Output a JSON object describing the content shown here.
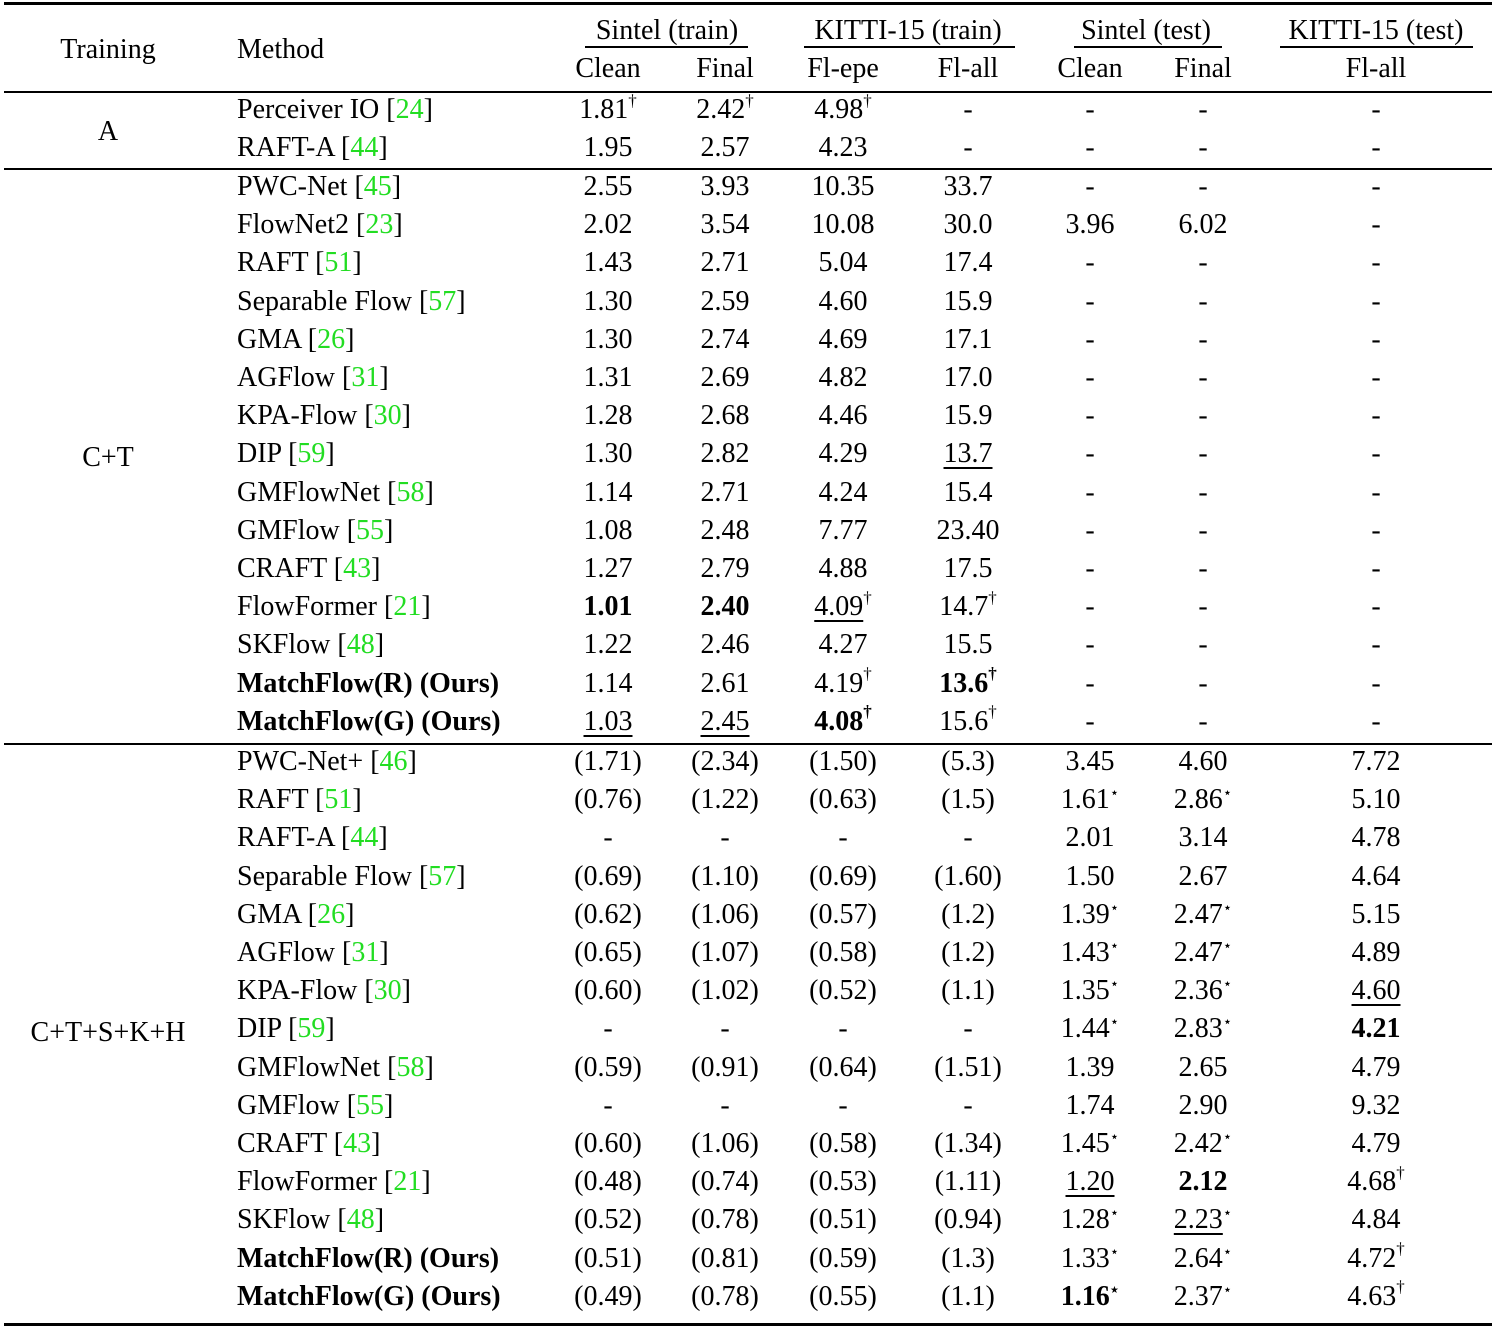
{
  "header": {
    "training": "Training",
    "method": "Method",
    "groups": [
      {
        "label": "Sintel (train)",
        "cols": [
          "Clean",
          "Final"
        ]
      },
      {
        "label": "KITTI-15 (train)",
        "cols": [
          "Fl-epe",
          "Fl-all"
        ]
      },
      {
        "label": "Sintel (test)",
        "cols": [
          "Clean",
          "Final"
        ]
      },
      {
        "label": "KITTI-15 (test)",
        "cols": [
          "Fl-all"
        ]
      }
    ]
  },
  "sections": [
    {
      "training": "A",
      "rows": [
        {
          "name": "Perceiver IO",
          "cite": "24",
          "bold": false,
          "vals": [
            {
              "v": "1.81",
              "m": "†"
            },
            {
              "v": "2.42",
              "m": "†"
            },
            {
              "v": "4.98",
              "m": "†"
            },
            {
              "v": "-"
            },
            {
              "v": "-"
            },
            {
              "v": "-"
            },
            {
              "v": "-"
            }
          ]
        },
        {
          "name": "RAFT-A",
          "cite": "44",
          "bold": false,
          "vals": [
            {
              "v": "1.95"
            },
            {
              "v": "2.57"
            },
            {
              "v": "4.23"
            },
            {
              "v": "-"
            },
            {
              "v": "-"
            },
            {
              "v": "-"
            },
            {
              "v": "-"
            }
          ]
        }
      ]
    },
    {
      "training": "C+T",
      "rows": [
        {
          "name": "PWC-Net",
          "cite": "45",
          "vals": [
            {
              "v": "2.55"
            },
            {
              "v": "3.93"
            },
            {
              "v": "10.35"
            },
            {
              "v": "33.7"
            },
            {
              "v": "-"
            },
            {
              "v": "-"
            },
            {
              "v": "-"
            }
          ]
        },
        {
          "name": "FlowNet2",
          "cite": "23",
          "vals": [
            {
              "v": "2.02"
            },
            {
              "v": "3.54"
            },
            {
              "v": "10.08"
            },
            {
              "v": "30.0"
            },
            {
              "v": "3.96"
            },
            {
              "v": "6.02"
            },
            {
              "v": "-"
            }
          ]
        },
        {
          "name": "RAFT",
          "cite": "51",
          "vals": [
            {
              "v": "1.43"
            },
            {
              "v": "2.71"
            },
            {
              "v": "5.04"
            },
            {
              "v": "17.4"
            },
            {
              "v": "-"
            },
            {
              "v": "-"
            },
            {
              "v": "-"
            }
          ]
        },
        {
          "name": "Separable Flow",
          "cite": "57",
          "vals": [
            {
              "v": "1.30"
            },
            {
              "v": "2.59"
            },
            {
              "v": "4.60"
            },
            {
              "v": "15.9"
            },
            {
              "v": "-"
            },
            {
              "v": "-"
            },
            {
              "v": "-"
            }
          ]
        },
        {
          "name": "GMA",
          "cite": "26",
          "vals": [
            {
              "v": "1.30"
            },
            {
              "v": "2.74"
            },
            {
              "v": "4.69"
            },
            {
              "v": "17.1"
            },
            {
              "v": "-"
            },
            {
              "v": "-"
            },
            {
              "v": "-"
            }
          ]
        },
        {
          "name": "AGFlow",
          "cite": "31",
          "vals": [
            {
              "v": "1.31"
            },
            {
              "v": "2.69"
            },
            {
              "v": "4.82"
            },
            {
              "v": "17.0"
            },
            {
              "v": "-"
            },
            {
              "v": "-"
            },
            {
              "v": "-"
            }
          ]
        },
        {
          "name": "KPA-Flow",
          "cite": "30",
          "vals": [
            {
              "v": "1.28"
            },
            {
              "v": "2.68"
            },
            {
              "v": "4.46"
            },
            {
              "v": "15.9"
            },
            {
              "v": "-"
            },
            {
              "v": "-"
            },
            {
              "v": "-"
            }
          ]
        },
        {
          "name": "DIP",
          "cite": "59",
          "vals": [
            {
              "v": "1.30"
            },
            {
              "v": "2.82"
            },
            {
              "v": "4.29"
            },
            {
              "v": "13.7",
              "s": "u"
            },
            {
              "v": "-"
            },
            {
              "v": "-"
            },
            {
              "v": "-"
            }
          ]
        },
        {
          "name": "GMFlowNet",
          "cite": "58",
          "vals": [
            {
              "v": "1.14"
            },
            {
              "v": "2.71"
            },
            {
              "v": "4.24"
            },
            {
              "v": "15.4"
            },
            {
              "v": "-"
            },
            {
              "v": "-"
            },
            {
              "v": "-"
            }
          ]
        },
        {
          "name": "GMFlow",
          "cite": "55",
          "vals": [
            {
              "v": "1.08"
            },
            {
              "v": "2.48"
            },
            {
              "v": "7.77"
            },
            {
              "v": "23.40"
            },
            {
              "v": "-"
            },
            {
              "v": "-"
            },
            {
              "v": "-"
            }
          ]
        },
        {
          "name": "CRAFT",
          "cite": "43",
          "vals": [
            {
              "v": "1.27"
            },
            {
              "v": "2.79"
            },
            {
              "v": "4.88"
            },
            {
              "v": "17.5"
            },
            {
              "v": "-"
            },
            {
              "v": "-"
            },
            {
              "v": "-"
            }
          ]
        },
        {
          "name": "FlowFormer",
          "cite": "21",
          "vals": [
            {
              "v": "1.01",
              "s": "b"
            },
            {
              "v": "2.40",
              "s": "b"
            },
            {
              "v": "4.09",
              "m": "†",
              "s": "u"
            },
            {
              "v": "14.7",
              "m": "†"
            },
            {
              "v": "-"
            },
            {
              "v": "-"
            },
            {
              "v": "-"
            }
          ]
        },
        {
          "name": "SKFlow",
          "cite": "48",
          "vals": [
            {
              "v": "1.22"
            },
            {
              "v": "2.46"
            },
            {
              "v": "4.27"
            },
            {
              "v": "15.5"
            },
            {
              "v": "-"
            },
            {
              "v": "-"
            },
            {
              "v": "-"
            }
          ]
        },
        {
          "name": "MatchFlow(R) (Ours)",
          "bold": true,
          "vals": [
            {
              "v": "1.14"
            },
            {
              "v": "2.61"
            },
            {
              "v": "4.19",
              "m": "†"
            },
            {
              "v": "13.6",
              "m": "†",
              "s": "b"
            },
            {
              "v": "-"
            },
            {
              "v": "-"
            },
            {
              "v": "-"
            }
          ]
        },
        {
          "name": "MatchFlow(G) (Ours)",
          "bold": true,
          "vals": [
            {
              "v": "1.03",
              "s": "u"
            },
            {
              "v": "2.45",
              "s": "u"
            },
            {
              "v": "4.08",
              "m": "†",
              "s": "b"
            },
            {
              "v": "15.6",
              "m": "†"
            },
            {
              "v": "-"
            },
            {
              "v": "-"
            },
            {
              "v": "-"
            }
          ]
        }
      ]
    },
    {
      "training": "C+T+S+K+H",
      "rows": [
        {
          "name": "PWC-Net+",
          "cite": "46",
          "vals": [
            {
              "v": "(1.71)"
            },
            {
              "v": "(2.34)"
            },
            {
              "v": "(1.50)"
            },
            {
              "v": "(5.3)"
            },
            {
              "v": "3.45"
            },
            {
              "v": "4.60"
            },
            {
              "v": "7.72"
            }
          ]
        },
        {
          "name": "RAFT",
          "cite": "51",
          "vals": [
            {
              "v": "(0.76)"
            },
            {
              "v": "(1.22)"
            },
            {
              "v": "(0.63)"
            },
            {
              "v": "(1.5)"
            },
            {
              "v": "1.61",
              "m": "⋆"
            },
            {
              "v": "2.86",
              "m": "⋆"
            },
            {
              "v": "5.10"
            }
          ]
        },
        {
          "name": "RAFT-A",
          "cite": "44",
          "vals": [
            {
              "v": "-"
            },
            {
              "v": "-"
            },
            {
              "v": "-"
            },
            {
              "v": "-"
            },
            {
              "v": "2.01"
            },
            {
              "v": "3.14"
            },
            {
              "v": "4.78"
            }
          ]
        },
        {
          "name": "Separable Flow",
          "cite": "57",
          "vals": [
            {
              "v": "(0.69)"
            },
            {
              "v": "(1.10)"
            },
            {
              "v": "(0.69)"
            },
            {
              "v": "(1.60)"
            },
            {
              "v": "1.50"
            },
            {
              "v": "2.67"
            },
            {
              "v": "4.64"
            }
          ]
        },
        {
          "name": "GMA",
          "cite": "26",
          "vals": [
            {
              "v": "(0.62)"
            },
            {
              "v": "(1.06)"
            },
            {
              "v": "(0.57)"
            },
            {
              "v": "(1.2)"
            },
            {
              "v": "1.39",
              "m": "⋆"
            },
            {
              "v": "2.47",
              "m": "⋆"
            },
            {
              "v": "5.15"
            }
          ]
        },
        {
          "name": "AGFlow",
          "cite": "31",
          "vals": [
            {
              "v": "(0.65)"
            },
            {
              "v": "(1.07)"
            },
            {
              "v": "(0.58)"
            },
            {
              "v": "(1.2)"
            },
            {
              "v": "1.43",
              "m": "⋆"
            },
            {
              "v": "2.47",
              "m": "⋆"
            },
            {
              "v": "4.89"
            }
          ]
        },
        {
          "name": "KPA-Flow",
          "cite": "30",
          "vals": [
            {
              "v": "(0.60)"
            },
            {
              "v": "(1.02)"
            },
            {
              "v": "(0.52)"
            },
            {
              "v": "(1.1)"
            },
            {
              "v": "1.35",
              "m": "⋆"
            },
            {
              "v": "2.36",
              "m": "⋆"
            },
            {
              "v": "4.60",
              "s": "u"
            }
          ]
        },
        {
          "name": "DIP",
          "cite": "59",
          "vals": [
            {
              "v": "-"
            },
            {
              "v": "-"
            },
            {
              "v": "-"
            },
            {
              "v": "-"
            },
            {
              "v": "1.44",
              "m": "⋆"
            },
            {
              "v": "2.83",
              "m": "⋆"
            },
            {
              "v": "4.21",
              "s": "b"
            }
          ]
        },
        {
          "name": "GMFlowNet",
          "cite": "58",
          "vals": [
            {
              "v": "(0.59)"
            },
            {
              "v": "(0.91)"
            },
            {
              "v": "(0.64)"
            },
            {
              "v": "(1.51)"
            },
            {
              "v": "1.39"
            },
            {
              "v": "2.65"
            },
            {
              "v": "4.79"
            }
          ]
        },
        {
          "name": "GMFlow",
          "cite": "55",
          "vals": [
            {
              "v": "-"
            },
            {
              "v": "-"
            },
            {
              "v": "-"
            },
            {
              "v": "-"
            },
            {
              "v": "1.74"
            },
            {
              "v": "2.90"
            },
            {
              "v": "9.32"
            }
          ]
        },
        {
          "name": "CRAFT",
          "cite": "43",
          "vals": [
            {
              "v": "(0.60)"
            },
            {
              "v": "(1.06)"
            },
            {
              "v": "(0.58)"
            },
            {
              "v": "(1.34)"
            },
            {
              "v": "1.45",
              "m": "⋆"
            },
            {
              "v": "2.42",
              "m": "⋆"
            },
            {
              "v": "4.79"
            }
          ]
        },
        {
          "name": "FlowFormer",
          "cite": "21",
          "vals": [
            {
              "v": "(0.48)"
            },
            {
              "v": "(0.74)"
            },
            {
              "v": "(0.53)"
            },
            {
              "v": "(1.11)"
            },
            {
              "v": "1.20",
              "s": "u"
            },
            {
              "v": "2.12",
              "s": "b"
            },
            {
              "v": "4.68",
              "m": "†"
            }
          ]
        },
        {
          "name": "SKFlow",
          "cite": "48",
          "vals": [
            {
              "v": "(0.52)"
            },
            {
              "v": "(0.78)"
            },
            {
              "v": "(0.51)"
            },
            {
              "v": "(0.94)"
            },
            {
              "v": "1.28",
              "m": "⋆"
            },
            {
              "v": "2.23",
              "m": "⋆",
              "s": "u"
            },
            {
              "v": "4.84"
            }
          ]
        },
        {
          "name": "MatchFlow(R) (Ours)",
          "bold": true,
          "vals": [
            {
              "v": "(0.51)"
            },
            {
              "v": "(0.81)"
            },
            {
              "v": "(0.59)"
            },
            {
              "v": "(1.3)"
            },
            {
              "v": "1.33",
              "m": "⋆"
            },
            {
              "v": "2.64",
              "m": "⋆"
            },
            {
              "v": "4.72",
              "m": "†"
            }
          ]
        },
        {
          "name": "MatchFlow(G) (Ours)",
          "bold": true,
          "vals": [
            {
              "v": "(0.49)"
            },
            {
              "v": "(0.78)"
            },
            {
              "v": "(0.55)"
            },
            {
              "v": "(1.1)"
            },
            {
              "v": "1.16",
              "m": "⋆",
              "s": "b"
            },
            {
              "v": "2.37",
              "m": "⋆"
            },
            {
              "v": "4.63",
              "m": "†"
            }
          ]
        }
      ]
    }
  ],
  "colors": {
    "citation": "#22dd22",
    "text": "#000000"
  }
}
